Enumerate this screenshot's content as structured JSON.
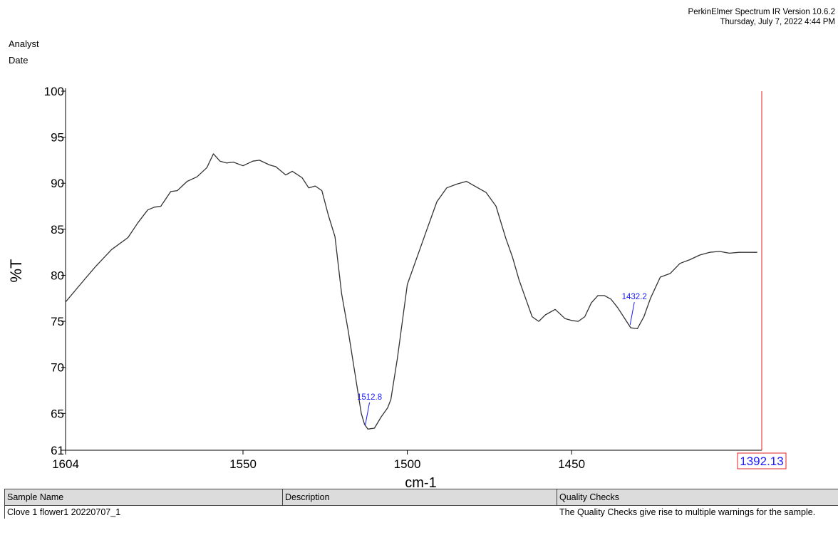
{
  "header": {
    "software": "PerkinElmer Spectrum IR Version 10.6.2",
    "datetime": "Thursday, July 7, 2022 4:44 PM",
    "analyst_label": "Analyst",
    "date_label": "Date"
  },
  "chart_data": {
    "type": "line",
    "xlabel": "cm-1",
    "ylabel": "%T",
    "xlim": [
      1604,
      1392.13
    ],
    "ylim": [
      61,
      100
    ],
    "x_ticks": [
      1604,
      1550,
      1500,
      1450
    ],
    "y_ticks": [
      61,
      65,
      70,
      75,
      80,
      85,
      90,
      95,
      100
    ],
    "cursor": {
      "x": 1392.13,
      "label": "1392.13",
      "color": "#e02020"
    },
    "line_color": "#333333",
    "annotation_color": "#1a1aff",
    "peaks": [
      {
        "label": "1512.8",
        "x": 1512.8,
        "y": 63.4
      },
      {
        "label": "1432.2",
        "x": 1432.2,
        "y": 74.3
      }
    ],
    "series": [
      {
        "x": [
          1604,
          1600,
          1595,
          1590,
          1585,
          1582,
          1579,
          1577,
          1575,
          1572,
          1570,
          1567,
          1564,
          1561,
          1559,
          1557,
          1555,
          1553,
          1550,
          1547,
          1545,
          1542,
          1540,
          1537,
          1535,
          1532,
          1530,
          1528,
          1526,
          1524,
          1522,
          1520,
          1518,
          1516,
          1514,
          1513,
          1512,
          1510,
          1508,
          1506,
          1505,
          1503,
          1500,
          1498,
          1496,
          1494,
          1491,
          1488,
          1485,
          1482,
          1479,
          1476,
          1473,
          1470,
          1468,
          1466,
          1464,
          1462,
          1460,
          1458,
          1455,
          1452,
          1450,
          1448,
          1446,
          1444,
          1442,
          1440,
          1438,
          1436,
          1434,
          1432,
          1430,
          1428,
          1426,
          1423,
          1420,
          1417,
          1414,
          1411,
          1408,
          1405,
          1402,
          1399,
          1396,
          1393.5
        ],
        "y": [
          77.1,
          78.8,
          80.9,
          82.8,
          84.1,
          85.7,
          87.1,
          87.4,
          87.5,
          89.1,
          89.2,
          90.2,
          90.7,
          91.7,
          93.2,
          92.4,
          92.2,
          92.3,
          91.9,
          92.4,
          92.5,
          92.0,
          91.8,
          90.9,
          91.3,
          90.6,
          89.5,
          89.7,
          89.2,
          86.5,
          84.2,
          78.0,
          74.0,
          69.5,
          65.0,
          63.8,
          63.3,
          63.4,
          64.6,
          65.6,
          66.5,
          71.0,
          79.0,
          81.0,
          83.0,
          85.0,
          88.0,
          89.5,
          89.9,
          90.2,
          89.6,
          89.0,
          87.5,
          84.0,
          82.0,
          79.5,
          77.5,
          75.5,
          75.0,
          75.7,
          76.3,
          75.3,
          75.1,
          75.0,
          75.5,
          77.0,
          77.8,
          77.8,
          77.4,
          76.5,
          75.4,
          74.3,
          74.2,
          75.5,
          77.5,
          79.8,
          80.2,
          81.3,
          81.7,
          82.2,
          82.5,
          82.6,
          82.4,
          82.5,
          82.5,
          82.5
        ]
      }
    ]
  },
  "table": {
    "headers": [
      "Sample Name",
      "Description",
      "Quality Checks"
    ],
    "rows": [
      [
        "Clove 1 flower1 20220707_1",
        "",
        "The Quality Checks give rise to multiple warnings for the sample."
      ]
    ]
  }
}
